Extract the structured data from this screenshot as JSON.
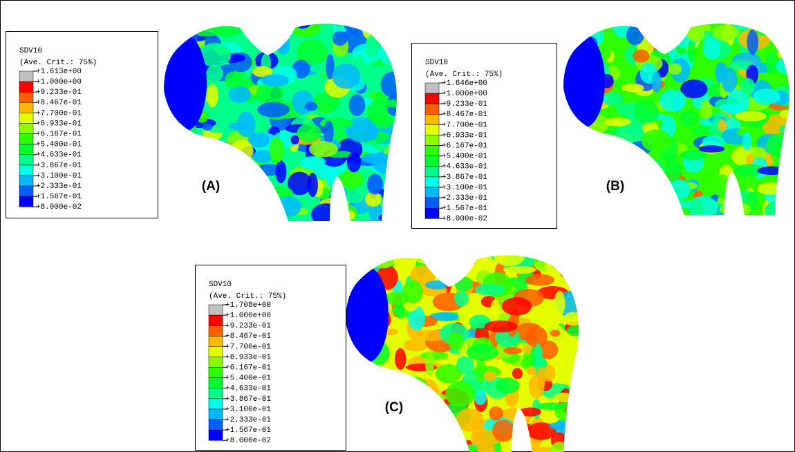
{
  "panels": [
    {
      "label": "(A)",
      "legend": {
        "title": "SDV10",
        "subtitle": "(Ave. Crit.: 75%)",
        "entries": [
          "+1.613e+00",
          "+1.000e+00",
          "+9.233e-01",
          "+8.467e-01",
          "+7.700e-01",
          "+6.933e-01",
          "+6.167e-01",
          "+5.400e-01",
          "+4.633e-01",
          "+3.867e-01",
          "+3.100e-01",
          "+2.333e-01",
          "+1.567e-01",
          "+8.000e-02"
        ]
      }
    },
    {
      "label": "(B)",
      "legend": {
        "title": "SDV10",
        "subtitle": "(Ave. Crit.: 75%)",
        "entries": [
          "+1.646e+00",
          "+1.000e+00",
          "+9.233e-01",
          "+8.467e-01",
          "+7.700e-01",
          "+6.933e-01",
          "+6.167e-01",
          "+5.400e-01",
          "+4.633e-01",
          "+3.867e-01",
          "+3.100e-01",
          "+2.333e-01",
          "+1.567e-01",
          "+8.000e-02"
        ]
      }
    },
    {
      "label": "(C)",
      "legend": {
        "title": "SDV10",
        "subtitle": "(Ave. Crit.: 75%)",
        "entries": [
          "+1.708e+00",
          "+1.000e+00",
          "+9.233e-01",
          "+8.467e-01",
          "+7.700e-01",
          "+6.933e-01",
          "+6.167e-01",
          "+5.400e-01",
          "+4.633e-01",
          "+3.867e-01",
          "+3.100e-01",
          "+2.333e-01",
          "+1.567e-01",
          "+8.000e-02"
        ]
      }
    }
  ]
}
